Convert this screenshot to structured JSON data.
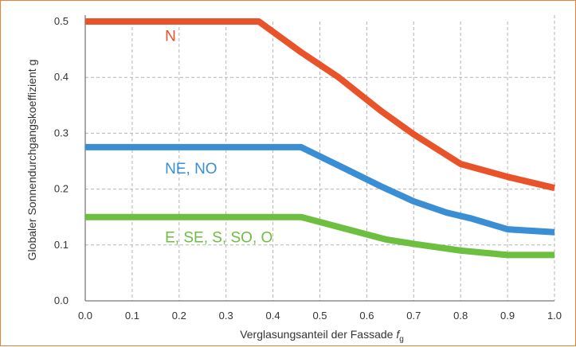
{
  "chart_data": {
    "type": "line",
    "title": "",
    "xlabel": "Verglasungsanteil der Fassade",
    "xlabel_symbol": "f",
    "xlabel_subscript": "g",
    "ylabel": "Globaler Sonnendurchgangskoeffizient g",
    "xlim": [
      0.0,
      1.0
    ],
    "ylim": [
      0.0,
      0.5
    ],
    "x_ticks": [
      "0.0",
      "0.1",
      "0.2",
      "0.3",
      "0.4",
      "0.5",
      "0.6",
      "0.7",
      "0.8",
      "0.9",
      "1.0"
    ],
    "y_ticks": [
      "0.0",
      "0.1",
      "0.2",
      "0.3",
      "0.4",
      "0.5"
    ],
    "grid": true,
    "legend": "inline labels",
    "series": [
      {
        "name": "N",
        "color": "#e8532a",
        "label_at": [
          0.17,
          0.465
        ],
        "points": [
          [
            0.0,
            0.5
          ],
          [
            0.37,
            0.5
          ],
          [
            0.46,
            0.445
          ],
          [
            0.54,
            0.4
          ],
          [
            0.63,
            0.34
          ],
          [
            0.7,
            0.298
          ],
          [
            0.8,
            0.245
          ],
          [
            0.9,
            0.222
          ],
          [
            1.0,
            0.202
          ]
        ]
      },
      {
        "name": "NE, NO",
        "color": "#3a8fd4",
        "label_at": [
          0.17,
          0.228
        ],
        "points": [
          [
            0.0,
            0.275
          ],
          [
            0.46,
            0.275
          ],
          [
            0.55,
            0.238
          ],
          [
            0.63,
            0.205
          ],
          [
            0.7,
            0.178
          ],
          [
            0.77,
            0.158
          ],
          [
            0.82,
            0.148
          ],
          [
            0.9,
            0.128
          ],
          [
            1.0,
            0.123
          ]
        ]
      },
      {
        "name": "E, SE, S, SO, O",
        "color": "#6cbf3f",
        "label_at": [
          0.17,
          0.105
        ],
        "points": [
          [
            0.0,
            0.15
          ],
          [
            0.46,
            0.15
          ],
          [
            0.55,
            0.13
          ],
          [
            0.64,
            0.11
          ],
          [
            0.7,
            0.102
          ],
          [
            0.8,
            0.09
          ],
          [
            0.9,
            0.082
          ],
          [
            1.0,
            0.082
          ]
        ]
      }
    ]
  }
}
